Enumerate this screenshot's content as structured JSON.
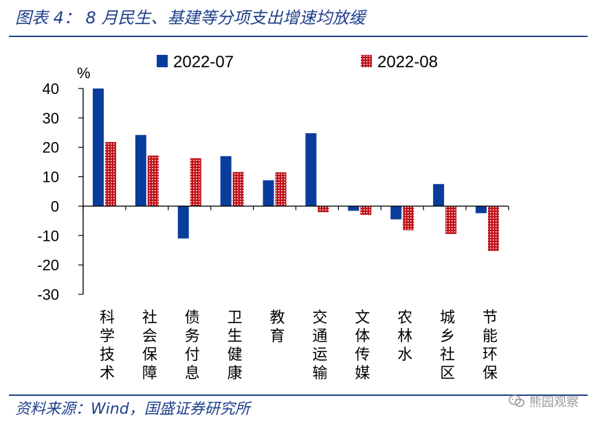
{
  "header": {
    "title": "图表 4：  8 月民生、基建等分项支出增速均放缓"
  },
  "footer": {
    "source": "资料来源：Wind，国盛证券研究所"
  },
  "watermark": {
    "text": "熊园观察",
    "icon": "wechat-icon"
  },
  "colors": {
    "series1": "#0a3c9c",
    "series2": "#c0121a",
    "rule": "#1f3f8a"
  },
  "chart_data": {
    "type": "bar",
    "title": "8 月民生、基建等分项支出增速均放缓",
    "ylabel": "%",
    "ylim": [
      -30,
      40
    ],
    "yticks": [
      40,
      30,
      20,
      10,
      0,
      -10,
      -20,
      -30
    ],
    "ytick_labels": [
      "40",
      "30",
      "20",
      "10",
      "0",
      "-10",
      "-20",
      "-30"
    ],
    "categories": [
      "科学技术",
      "社会保障",
      "债务付息",
      "卫生健康",
      "教育",
      "交通运输",
      "文体传媒",
      "农林水",
      "城乡社区",
      "节能环保"
    ],
    "series": [
      {
        "name": "2022-07",
        "values": [
          40,
          24.2,
          -11,
          17,
          8.8,
          24.8,
          -1.6,
          -4.5,
          7.5,
          -2.4
        ]
      },
      {
        "name": "2022-08",
        "values": [
          21.8,
          17.2,
          16.3,
          11.6,
          11.5,
          -2.1,
          -3,
          -8.2,
          -9.5,
          -15.3
        ]
      }
    ],
    "legend": "top"
  }
}
